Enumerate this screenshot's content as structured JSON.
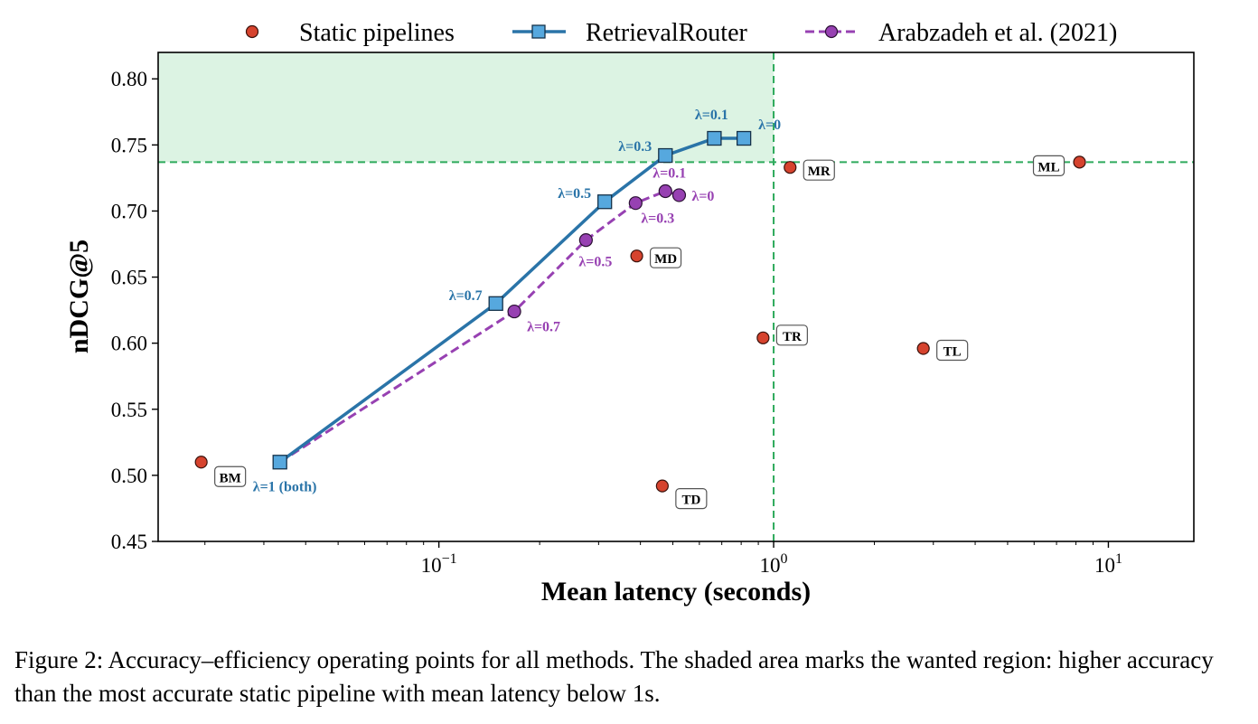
{
  "caption": "Figure 2: Accuracy–efficiency operating points for all methods. The shaded area marks the wanted region: higher accuracy than the most accurate static pipeline with mean latency below 1s.",
  "chart_data": {
    "type": "scatter",
    "xlabel": "Mean latency (seconds)",
    "ylabel": "nDCG@5",
    "x_scale": "log",
    "xlim": [
      0.0145,
      18.0
    ],
    "ylim": [
      0.45,
      0.82
    ],
    "x_ticks": [
      0.1,
      1,
      10
    ],
    "x_tick_labels": [
      {
        "base": "10",
        "exp": "−1"
      },
      {
        "base": "10",
        "exp": "0"
      },
      {
        "base": "10",
        "exp": "1"
      }
    ],
    "y_ticks": [
      0.45,
      0.5,
      0.55,
      0.6,
      0.65,
      0.7,
      0.75,
      0.8
    ],
    "y_tick_labels": [
      "0.45",
      "0.50",
      "0.55",
      "0.60",
      "0.65",
      "0.70",
      "0.75",
      "0.80"
    ],
    "legend_position": "top",
    "grid": false,
    "wanted_region": {
      "x_max": 1.0,
      "y_min": 0.737,
      "color": "#dcf3e3"
    },
    "threshold_color": "#2eaa5c",
    "series": [
      {
        "name": "Static pipelines",
        "style": "scatter",
        "marker": "circle",
        "color": "#d6432e",
        "points": [
          {
            "x": 0.0195,
            "y": 0.51,
            "label": "BM"
          },
          {
            "x": 0.465,
            "y": 0.492,
            "label": "TD"
          },
          {
            "x": 0.39,
            "y": 0.666,
            "label": "MD"
          },
          {
            "x": 0.93,
            "y": 0.604,
            "label": "TR"
          },
          {
            "x": 1.12,
            "y": 0.733,
            "label": "MR"
          },
          {
            "x": 2.8,
            "y": 0.596,
            "label": "TL"
          },
          {
            "x": 8.2,
            "y": 0.737,
            "label": "ML"
          }
        ]
      },
      {
        "name": "RetrievalRouter",
        "style": "line-square",
        "color": "#2a74a8",
        "marker_fill": "#56a8de",
        "points": [
          {
            "x": 0.0335,
            "y": 0.51,
            "label": "λ=1 (both)"
          },
          {
            "x": 0.148,
            "y": 0.63,
            "label": "λ=0.7"
          },
          {
            "x": 0.313,
            "y": 0.707,
            "label": "λ=0.5"
          },
          {
            "x": 0.475,
            "y": 0.742,
            "label": "λ=0.3"
          },
          {
            "x": 0.665,
            "y": 0.755,
            "label": "λ=0.1"
          },
          {
            "x": 0.815,
            "y": 0.755,
            "label": "λ=0"
          }
        ]
      },
      {
        "name": "Arabzadeh et al. (2021)",
        "style": "dashed-circle",
        "color": "#9741b2",
        "points": [
          {
            "x": 0.0335,
            "y": 0.51,
            "label": ""
          },
          {
            "x": 0.168,
            "y": 0.624,
            "label": "λ=0.7"
          },
          {
            "x": 0.275,
            "y": 0.678,
            "label": "λ=0.5"
          },
          {
            "x": 0.387,
            "y": 0.706,
            "label": "λ=0.3"
          },
          {
            "x": 0.475,
            "y": 0.715,
            "label": "λ=0.1"
          },
          {
            "x": 0.522,
            "y": 0.712,
            "label": "λ=0"
          }
        ]
      }
    ]
  }
}
